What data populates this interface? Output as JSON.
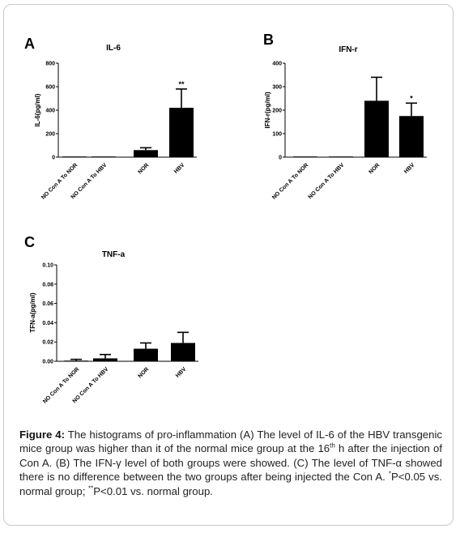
{
  "panels": [
    {
      "letter": "A",
      "title": "IL-6",
      "ylabel": "IL-6(pg/ml)"
    },
    {
      "letter": "B",
      "title": "IFN-r",
      "ylabel": "IFN-r(pg/ml)"
    },
    {
      "letter": "C",
      "title": "TNF-a",
      "ylabel": "TFN-a(pg/ml)"
    }
  ],
  "chart_data": [
    {
      "type": "bar",
      "title": "IL-6",
      "ylabel": "IL-6(pg/ml)",
      "categories": [
        "NO Con A To NOR",
        "NO Con A To HBV",
        "NOR",
        "HBV"
      ],
      "values": [
        0,
        0,
        60,
        420
      ],
      "error": [
        0,
        0,
        20,
        160
      ],
      "annotations": [
        "",
        "",
        "",
        "**"
      ],
      "ylim": [
        0,
        800
      ],
      "yticks": [
        "0",
        "200",
        "400",
        "600",
        "800"
      ]
    },
    {
      "type": "bar",
      "title": "IFN-r",
      "ylabel": "IFN-r(pg/ml)",
      "categories": [
        "NO Con A To NOR",
        "NO Con A To HBV",
        "NOR",
        "HBV"
      ],
      "values": [
        2,
        2,
        240,
        175
      ],
      "error": [
        0,
        0,
        100,
        55
      ],
      "annotations": [
        "",
        "",
        "",
        "*"
      ],
      "ylim": [
        0,
        400
      ],
      "yticks": [
        "0",
        "100",
        "200",
        "300",
        "400"
      ]
    },
    {
      "type": "bar",
      "title": "TNF-a",
      "ylabel": "TFN-a(pg/ml)",
      "categories": [
        "NO Con A To NOR",
        "NO Con A To HBV",
        "NOR",
        "HBV"
      ],
      "values": [
        0.0005,
        0.003,
        0.013,
        0.019
      ],
      "error": [
        0.0015,
        0.004,
        0.006,
        0.011
      ],
      "annotations": [
        "",
        "",
        "",
        ""
      ],
      "ylim": [
        0,
        0.1
      ],
      "yticks": [
        "0.00",
        "0.02",
        "0.04",
        "0.06",
        "0.08",
        "0.10"
      ]
    }
  ],
  "caption": {
    "label": "Figure 4:",
    "text_part1": " The histograms of pro-inflammation (A) The level of IL-6 of the HBV transgenic mice group was higher than it of the normal mice group at the 16",
    "sup_th": "th",
    "text_part2": " h after the injection of Con A. (B) The IFN-γ level of both groups were showed. (C) The level of TNF-α showed there is no difference between the two groups after being injected the Con A. ",
    "sup_single": "*",
    "text_part3": "P<0.05 vs. normal group; ",
    "sup_double": "**",
    "text_part4": "P<0.01 vs. normal group."
  }
}
